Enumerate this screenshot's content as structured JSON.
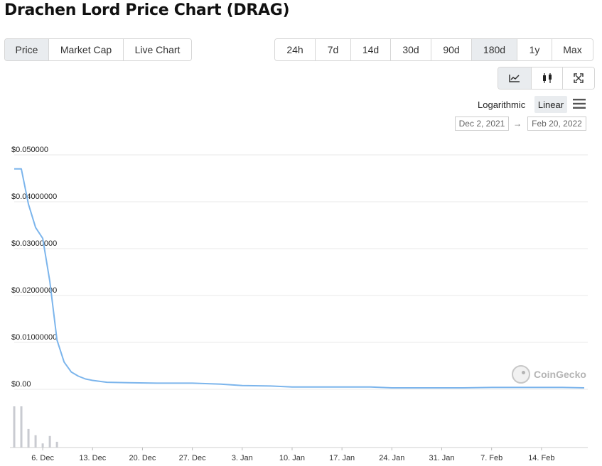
{
  "page_title": "Drachen Lord Price Chart (DRAG)",
  "metric_tabs": [
    {
      "label": "Price",
      "active": true
    },
    {
      "label": "Market Cap",
      "active": false
    },
    {
      "label": "Live Chart",
      "active": false
    }
  ],
  "range_tabs": [
    {
      "label": "24h",
      "active": false
    },
    {
      "label": "7d",
      "active": false
    },
    {
      "label": "14d",
      "active": false
    },
    {
      "label": "30d",
      "active": false
    },
    {
      "label": "90d",
      "active": false
    },
    {
      "label": "180d",
      "active": true
    },
    {
      "label": "1y",
      "active": false
    },
    {
      "label": "Max",
      "active": false
    }
  ],
  "chart_type_buttons": [
    {
      "icon": "line-chart-icon",
      "active": true
    },
    {
      "icon": "candlestick-icon",
      "active": false
    },
    {
      "icon": "fullscreen-icon",
      "active": false
    }
  ],
  "scale": {
    "log_label": "Logarithmic",
    "linear_label": "Linear",
    "selected": "Linear"
  },
  "date_range": {
    "from": "Dec 2, 2021",
    "arrow": "→",
    "to": "Feb 20, 2022"
  },
  "watermark": "CoinGecko",
  "colors": {
    "line": "#7cb5ec",
    "volume": "#c9cbd1",
    "grid": "#e9e9e9",
    "active_button": "#e9ecef"
  },
  "chart_data": {
    "type": "line",
    "title": "Drachen Lord Price Chart (DRAG)",
    "ylabel": "",
    "xlabel": "",
    "ylim": [
      0,
      0.05
    ],
    "yticks": [
      0,
      0.01,
      0.02,
      0.03,
      0.04,
      0.05
    ],
    "ytick_labels": [
      "$0.00",
      "$0.01000000",
      "$0.02000000",
      "$0.03000000",
      "$0.04000000",
      "$0.050000"
    ],
    "xlim": [
      "2021-12-02",
      "2022-02-20"
    ],
    "xticks": [
      "2021-12-06",
      "2021-12-13",
      "2021-12-20",
      "2021-12-27",
      "2022-01-03",
      "2022-01-10",
      "2022-01-17",
      "2022-01-24",
      "2022-01-31",
      "2022-02-07",
      "2022-02-14"
    ],
    "xtick_labels": [
      "6. Dec",
      "13. Dec",
      "20. Dec",
      "27. Dec",
      "3. Jan",
      "10. Jan",
      "17. Jan",
      "24. Jan",
      "31. Jan",
      "7. Feb",
      "14. Feb"
    ],
    "grid": true,
    "series": [
      {
        "points": [
          [
            "2021-12-02",
            0.047
          ],
          [
            "2021-12-03",
            0.047
          ],
          [
            "2021-12-04",
            0.0395
          ],
          [
            "2021-12-05",
            0.0345
          ],
          [
            "2021-12-06",
            0.0322
          ],
          [
            "2021-12-07",
            0.023
          ],
          [
            "2021-12-08",
            0.0105
          ],
          [
            "2021-12-09",
            0.0058
          ],
          [
            "2021-12-10",
            0.0037
          ],
          [
            "2021-12-11",
            0.0028
          ],
          [
            "2021-12-12",
            0.0022
          ],
          [
            "2021-12-13",
            0.0019
          ],
          [
            "2021-12-15",
            0.0015
          ],
          [
            "2021-12-18",
            0.0014
          ],
          [
            "2021-12-22",
            0.0013
          ],
          [
            "2021-12-27",
            0.0013
          ],
          [
            "2021-12-31",
            0.0011
          ],
          [
            "2022-01-03",
            0.0008
          ],
          [
            "2022-01-07",
            0.0007
          ],
          [
            "2022-01-10",
            0.0005
          ],
          [
            "2022-01-14",
            0.0005
          ],
          [
            "2022-01-17",
            0.0005
          ],
          [
            "2022-01-21",
            0.0005
          ],
          [
            "2022-01-24",
            0.0003
          ],
          [
            "2022-01-28",
            0.0003
          ],
          [
            "2022-01-31",
            0.0003
          ],
          [
            "2022-02-03",
            0.0003
          ],
          [
            "2022-02-07",
            0.0004
          ],
          [
            "2022-02-10",
            0.0004
          ],
          [
            "2022-02-14",
            0.0004
          ],
          [
            "2022-02-17",
            0.0004
          ],
          [
            "2022-02-20",
            0.0003
          ]
        ]
      }
    ],
    "volume": [
      [
        "2021-12-02",
        1.0
      ],
      [
        "2021-12-03",
        1.0
      ],
      [
        "2021-12-04",
        0.45
      ],
      [
        "2021-12-05",
        0.3
      ],
      [
        "2021-12-06",
        0.1
      ],
      [
        "2021-12-07",
        0.28
      ],
      [
        "2021-12-08",
        0.14
      ]
    ]
  }
}
